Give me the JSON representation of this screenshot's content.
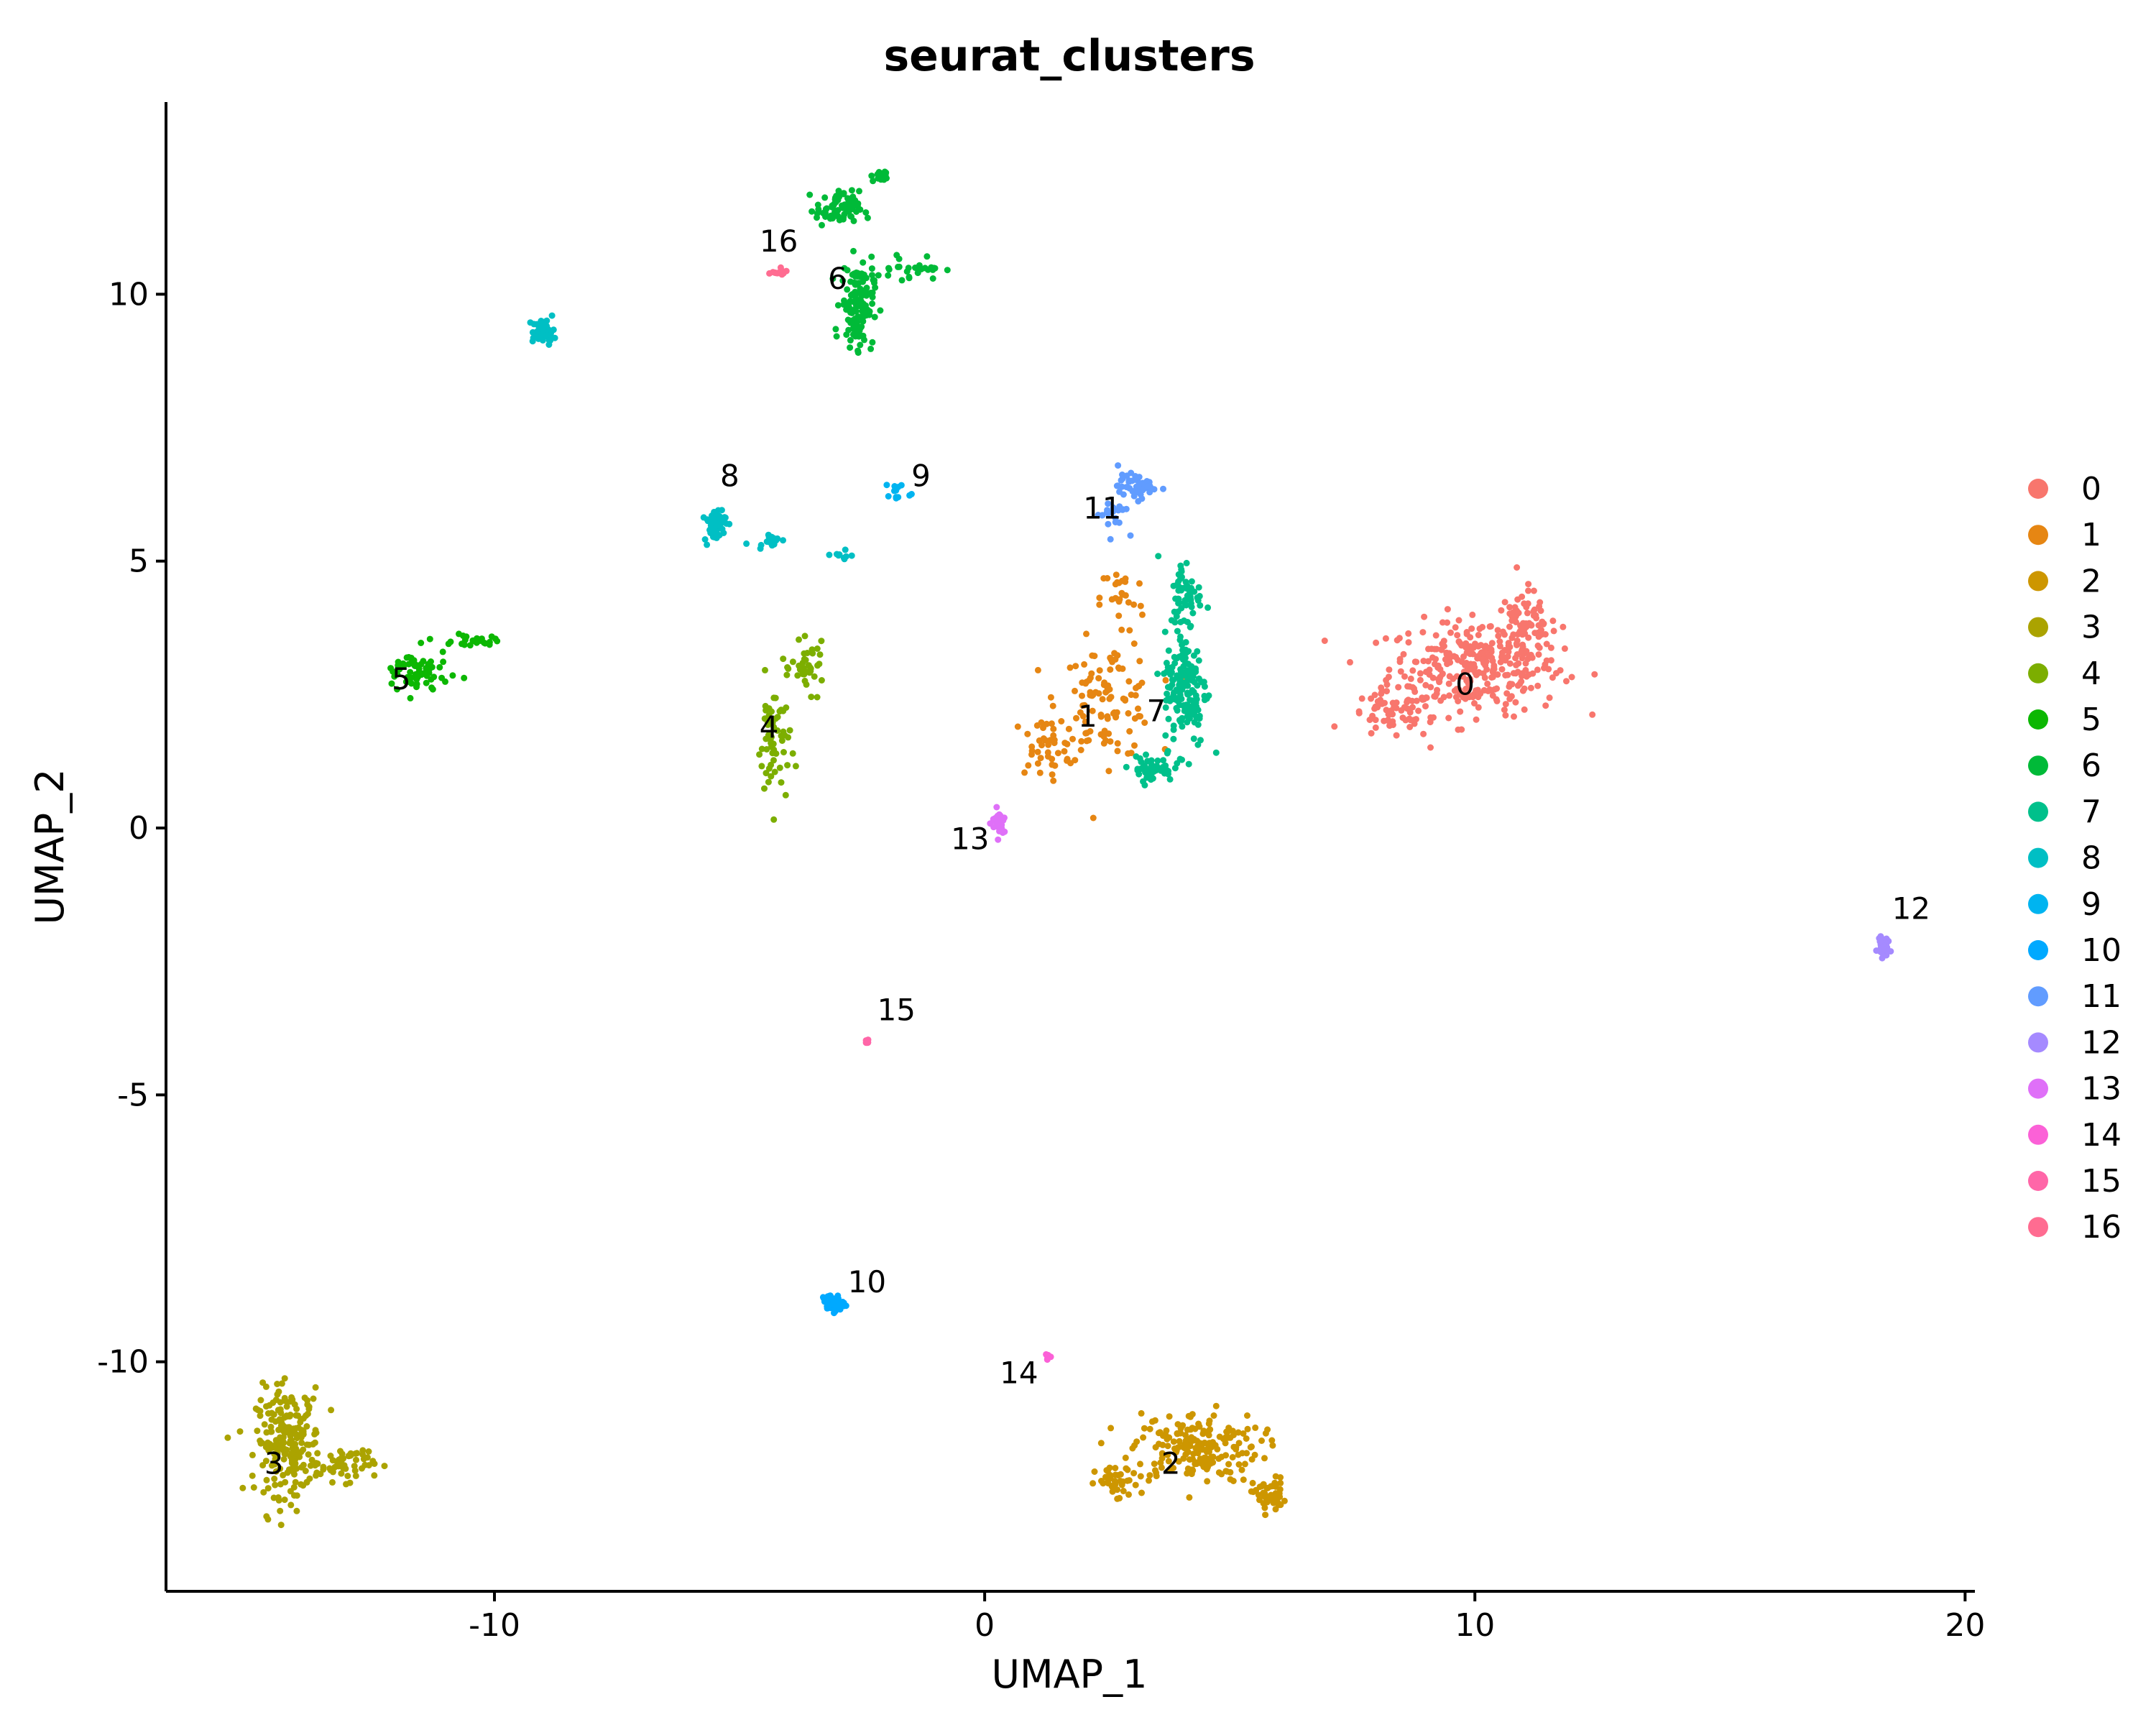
{
  "chart_data": {
    "type": "scatter",
    "title": "seurat_clusters",
    "xlabel": "UMAP_1",
    "ylabel": "UMAP_2",
    "xlim": [
      -16.7,
      20.2
    ],
    "ylim": [
      -14.3,
      13.6
    ],
    "xticks": [
      -10,
      0,
      10,
      20
    ],
    "xtick_labels": [
      "-10",
      "0",
      "10",
      "20"
    ],
    "yticks": [
      -10,
      -5,
      0,
      5,
      10
    ],
    "ytick_labels": [
      "-10",
      "-5",
      "0",
      "5",
      "10"
    ],
    "grid": false,
    "legend_position": "right",
    "clusters": [
      {
        "name": "0",
        "color": "#F8766D",
        "label_pos": [
          9.8,
          2.5
        ],
        "blobs": [
          {
            "center": [
              10.0,
              3.0
            ],
            "spread": [
              1.6,
              0.8
            ],
            "n": 300
          },
          {
            "center": [
              11.0,
              3.8
            ],
            "spread": [
              0.6,
              0.6
            ],
            "n": 80
          },
          {
            "center": [
              8.3,
              2.1
            ],
            "spread": [
              0.8,
              0.4
            ],
            "n": 60
          }
        ]
      },
      {
        "name": "1",
        "color": "#E68613",
        "label_pos": [
          2.1,
          1.9
        ],
        "blobs": [
          {
            "center": [
              2.5,
              2.4
            ],
            "spread": [
              0.9,
              1.0
            ],
            "n": 110
          },
          {
            "center": [
              1.2,
              1.5
            ],
            "spread": [
              0.6,
              0.5
            ],
            "n": 40
          },
          {
            "center": [
              2.8,
              4.3
            ],
            "spread": [
              0.4,
              0.6
            ],
            "n": 25
          }
        ]
      },
      {
        "name": "2",
        "color": "#CD9600",
        "label_pos": [
          3.8,
          -12.1
        ],
        "blobs": [
          {
            "center": [
              4.3,
              -11.6
            ],
            "spread": [
              1.2,
              0.6
            ],
            "n": 200
          },
          {
            "center": [
              5.8,
              -12.5
            ],
            "spread": [
              0.3,
              0.3
            ],
            "n": 50
          },
          {
            "center": [
              2.7,
              -12.3
            ],
            "spread": [
              0.4,
              0.3
            ],
            "n": 40
          }
        ]
      },
      {
        "name": "3",
        "color": "#ABA300",
        "label_pos": [
          -14.5,
          -12.1
        ],
        "blobs": [
          {
            "center": [
              -14.2,
              -11.5
            ],
            "spread": [
              0.6,
              0.9
            ],
            "n": 230
          },
          {
            "center": [
              -13.0,
              -11.9
            ],
            "spread": [
              0.5,
              0.3
            ],
            "n": 50
          }
        ]
      },
      {
        "name": "4",
        "color": "#7CAE00",
        "label_pos": [
          -4.4,
          1.7
        ],
        "blobs": [
          {
            "center": [
              -4.3,
              1.6
            ],
            "spread": [
              0.3,
              1.1
            ],
            "n": 60
          },
          {
            "center": [
              -3.6,
              3.0
            ],
            "spread": [
              0.3,
              0.4
            ],
            "n": 40
          }
        ]
      },
      {
        "name": "5",
        "color": "#0CB702",
        "label_pos": [
          -11.9,
          2.6
        ],
        "blobs": [
          {
            "center": [
              -11.6,
              2.9
            ],
            "spread": [
              0.6,
              0.4
            ],
            "n": 70
          },
          {
            "center": [
              -10.4,
              3.5
            ],
            "spread": [
              0.4,
              0.1
            ],
            "n": 25
          }
        ]
      },
      {
        "name": "6",
        "color": "#00BA38",
        "label_pos": [
          -3.0,
          10.1
        ],
        "blobs": [
          {
            "center": [
              -2.6,
              9.8
            ],
            "spread": [
              0.3,
              0.7
            ],
            "n": 140
          },
          {
            "center": [
              -3.0,
              11.6
            ],
            "spread": [
              0.4,
              0.3
            ],
            "n": 70
          },
          {
            "center": [
              -2.1,
              12.2
            ],
            "spread": [
              0.2,
              0.1
            ],
            "n": 20
          },
          {
            "center": [
              -1.5,
              10.5
            ],
            "spread": [
              0.6,
              0.2
            ],
            "n": 30
          }
        ]
      },
      {
        "name": "7",
        "color": "#00C08B",
        "label_pos": [
          3.5,
          2.0
        ],
        "blobs": [
          {
            "center": [
              4.1,
              2.6
            ],
            "spread": [
              0.4,
              1.0
            ],
            "n": 160
          },
          {
            "center": [
              4.1,
              4.4
            ],
            "spread": [
              0.3,
              0.6
            ],
            "n": 60
          },
          {
            "center": [
              3.4,
              1.1
            ],
            "spread": [
              0.4,
              0.2
            ],
            "n": 50
          }
        ]
      },
      {
        "name": "8",
        "color": "#00BFC4",
        "label_pos": [
          -5.2,
          6.4
        ],
        "blobs": [
          {
            "center": [
              -5.5,
              5.7
            ],
            "spread": [
              0.2,
              0.3
            ],
            "n": 60
          },
          {
            "center": [
              -4.4,
              5.4
            ],
            "spread": [
              0.3,
              0.1
            ],
            "n": 15
          },
          {
            "center": [
              -9.0,
              9.3
            ],
            "spread": [
              0.2,
              0.2
            ],
            "n": 60
          },
          {
            "center": [
              -2.9,
              5.1
            ],
            "spread": [
              0.2,
              0.1
            ],
            "n": 10
          }
        ]
      },
      {
        "name": "9",
        "color": "#00B4F0",
        "label_pos": [
          -1.3,
          6.4
        ],
        "blobs": [
          {
            "center": [
              -1.8,
              6.3
            ],
            "spread": [
              0.3,
              0.2
            ],
            "n": 12
          }
        ]
      },
      {
        "name": "10",
        "color": "#00A9FF",
        "label_pos": [
          -2.4,
          -8.7
        ],
        "blobs": [
          {
            "center": [
              -3.1,
              -8.9
            ],
            "spread": [
              0.2,
              0.15
            ],
            "n": 40
          }
        ]
      },
      {
        "name": "11",
        "color": "#619CFF",
        "label_pos": [
          2.4,
          5.8
        ],
        "blobs": [
          {
            "center": [
              3.1,
              6.4
            ],
            "spread": [
              0.35,
              0.2
            ],
            "n": 60
          },
          {
            "center": [
              2.6,
              5.9
            ],
            "spread": [
              0.3,
              0.3
            ],
            "n": 20
          }
        ]
      },
      {
        "name": "12",
        "color": "#A58AFF",
        "label_pos": [
          18.9,
          -1.7
        ],
        "blobs": [
          {
            "center": [
              18.3,
              -2.2
            ],
            "spread": [
              0.1,
              0.2
            ],
            "n": 35
          }
        ]
      },
      {
        "name": "13",
        "color": "#DF70F8",
        "label_pos": [
          -0.3,
          -0.4
        ],
        "blobs": [
          {
            "center": [
              0.3,
              0.1
            ],
            "spread": [
              0.15,
              0.25
            ],
            "n": 30
          }
        ]
      },
      {
        "name": "14",
        "color": "#FB61D7",
        "label_pos": [
          0.7,
          -10.4
        ],
        "blobs": [
          {
            "center": [
              1.3,
              -9.9
            ],
            "spread": [
              0.05,
              0.05
            ],
            "n": 8
          }
        ]
      },
      {
        "name": "15",
        "color": "#FF66A8",
        "label_pos": [
          -1.8,
          -3.6
        ],
        "blobs": [
          {
            "center": [
              -2.4,
              -4.0
            ],
            "spread": [
              0.05,
              0.05
            ],
            "n": 8
          }
        ]
      },
      {
        "name": "16",
        "color": "#FF6C91",
        "label_pos": [
          -4.2,
          10.8
        ],
        "blobs": [
          {
            "center": [
              -4.2,
              10.4
            ],
            "spread": [
              0.2,
              0.05
            ],
            "n": 15
          }
        ]
      }
    ]
  }
}
